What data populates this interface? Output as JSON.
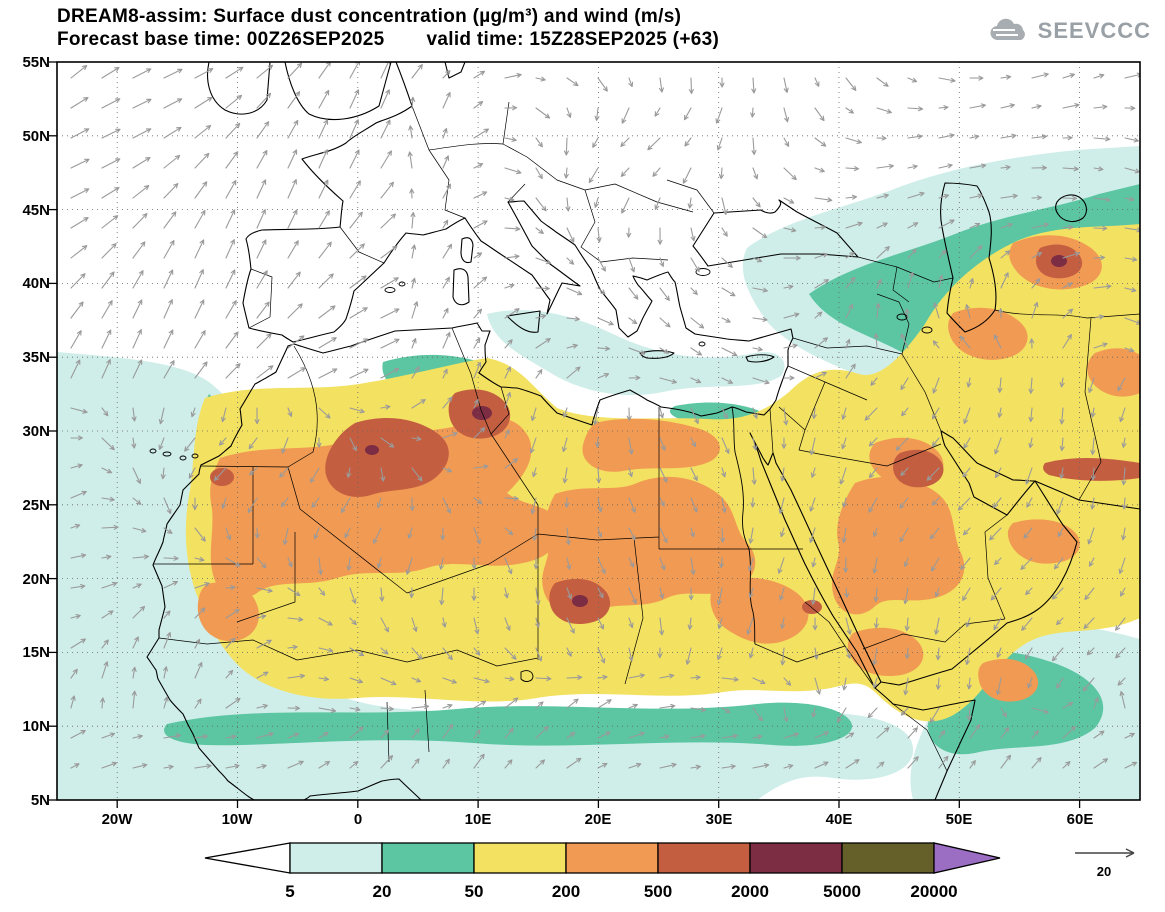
{
  "header": {
    "title": "DREAM8-assim: Surface dust concentration (µg/m³) and wind (m/s)",
    "forecast_base": "Forecast base time: 00Z26SEP2025",
    "valid_time": "valid time: 15Z28SEP2025 (+63)",
    "logo": "SEEVCCC"
  },
  "axes": {
    "lat_labels": [
      "55N",
      "50N",
      "45N",
      "40N",
      "35N",
      "30N",
      "25N",
      "20N",
      "15N",
      "10N",
      "5N"
    ],
    "lon_labels": [
      "20W",
      "10W",
      "0",
      "10E",
      "20E",
      "30E",
      "40E",
      "50E",
      "60E"
    ]
  },
  "legend": {
    "labels": [
      "5",
      "20",
      "50",
      "200",
      "500",
      "2000",
      "5000",
      "20000"
    ],
    "colors": [
      "#ffffff",
      "#cfeee9",
      "#5cc6a3",
      "#f3e161",
      "#f19a53",
      "#c45e41",
      "#7c2d44",
      "#655f29",
      "#9b6ec3"
    ]
  },
  "wind_reference": {
    "label": "20"
  },
  "colors": {
    "background": "#ffffff",
    "frame": "#000000",
    "coastline": "#000000",
    "graticule": "#666666",
    "wind_arrow": "#9a9a9a",
    "title_text": "#000000",
    "logo_gray": "#9aa1a6"
  }
}
